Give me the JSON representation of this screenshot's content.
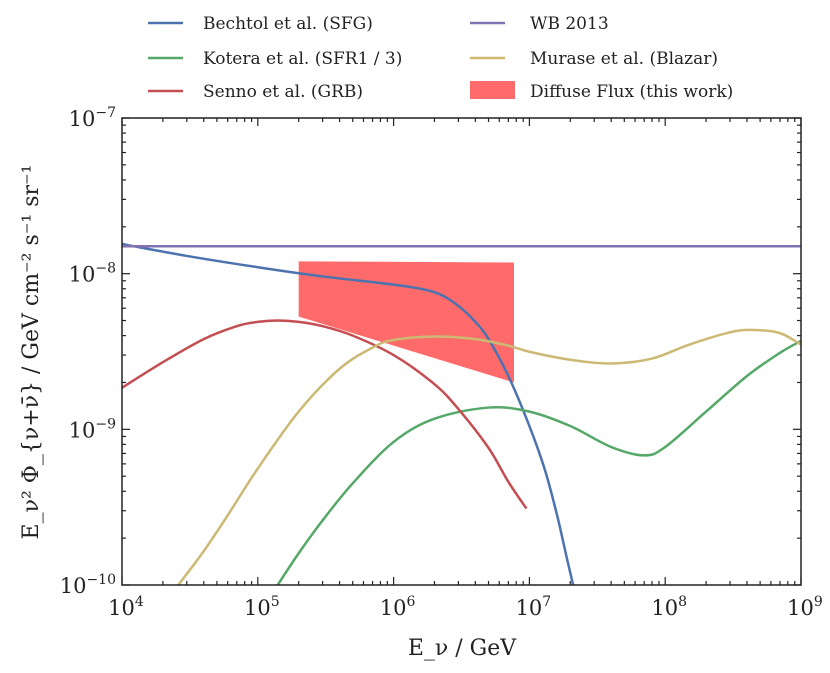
{
  "chart_data": {
    "type": "line",
    "xscale": "log",
    "yscale": "log",
    "xlim": [
      10000,
      1000000000
    ],
    "ylim": [
      1e-10,
      1e-07
    ],
    "xlabel": "E_ν / GeV",
    "ylabel": "E_ν² Φ_{ν+ν̄} / GeV cm⁻² s⁻¹ sr⁻¹",
    "x_ticks": [
      {
        "base": "10",
        "exp": "4",
        "value": 10000
      },
      {
        "base": "10",
        "exp": "5",
        "value": 100000
      },
      {
        "base": "10",
        "exp": "6",
        "value": 1000000
      },
      {
        "base": "10",
        "exp": "7",
        "value": 10000000
      },
      {
        "base": "10",
        "exp": "8",
        "value": 100000000
      },
      {
        "base": "10",
        "exp": "9",
        "value": 1000000000
      }
    ],
    "y_ticks": [
      {
        "base": "10",
        "exp": "−10",
        "value": 1e-10
      },
      {
        "base": "10",
        "exp": "−9",
        "value": 1e-09
      },
      {
        "base": "10",
        "exp": "−8",
        "value": 1e-08
      },
      {
        "base": "10",
        "exp": "−7",
        "value": 1e-07
      }
    ],
    "legend_position": "above-plot",
    "series": [
      {
        "name": "Bechtol et al. (SFG)",
        "color": "#4c72b0",
        "x": [
          10000,
          30000,
          100000,
          300000,
          1000000,
          2000000,
          3000000,
          4000000,
          5000000,
          7000000,
          10000000,
          13000000,
          16000000,
          19000000,
          21000000
        ],
        "y": [
          1.55e-08,
          1.3e-08,
          1.1e-08,
          9.6e-09,
          8.5e-09,
          7.6e-09,
          6.2e-09,
          4.9e-09,
          3.8e-09,
          2.2e-09,
          1.05e-09,
          5.5e-10,
          2.8e-10,
          1.45e-10,
          1e-10
        ]
      },
      {
        "name": "Kotera et al. (SFR1 / 3)",
        "color": "#55a868",
        "x": [
          140000,
          200000,
          300000,
          500000,
          1000000,
          2000000,
          5000000,
          10000000,
          20000000,
          40000000,
          70000000,
          100000000,
          200000000,
          400000000,
          700000000,
          1000000000
        ],
        "y": [
          1e-10,
          1.6e-10,
          2.6e-10,
          4.5e-10,
          8.3e-10,
          1.17e-09,
          1.38e-09,
          1.3e-09,
          1.05e-09,
          7.7e-10,
          6.8e-10,
          7.7e-10,
          1.3e-09,
          2.2e-09,
          3.1e-09,
          3.7e-09
        ]
      },
      {
        "name": "Senno et al. (GRB)",
        "color": "#c44e52",
        "x": [
          10000,
          20000,
          40000,
          70000,
          100000,
          140000,
          200000,
          300000,
          500000,
          1000000,
          2000000,
          3000000,
          5000000,
          7000000,
          9500000
        ],
        "y": [
          1.85e-09,
          2.7e-09,
          3.8e-09,
          4.6e-09,
          4.9e-09,
          5e-09,
          4.9e-09,
          4.6e-09,
          4e-09,
          3e-09,
          1.95e-09,
          1.35e-09,
          7.6e-10,
          4.6e-10,
          3.1e-10
        ]
      },
      {
        "name": "WB 2013",
        "color": "#8172b2",
        "x": [
          10000,
          1000000000
        ],
        "y": [
          1.5e-08,
          1.5e-08
        ]
      },
      {
        "name": "Murase et al. (Blazar)",
        "color": "#ccb974",
        "x": [
          26000,
          40000,
          60000,
          100000,
          200000,
          400000,
          700000,
          1000000,
          2000000,
          4000000,
          7000000,
          10000000,
          20000000,
          40000000,
          80000000,
          150000000,
          300000000,
          450000000,
          700000000,
          1000000000
        ],
        "y": [
          1e-10,
          1.65e-10,
          2.8e-10,
          5.6e-10,
          1.3e-09,
          2.45e-09,
          3.35e-09,
          3.75e-09,
          3.95e-09,
          3.8e-09,
          3.45e-09,
          3.15e-09,
          2.8e-09,
          2.65e-09,
          2.85e-09,
          3.5e-09,
          4.2e-09,
          4.35e-09,
          4.15e-09,
          3.5e-09
        ]
      }
    ],
    "band": {
      "name": "Diffuse Flux (this work)",
      "color": "#ff6b6b",
      "x": [
        200000,
        7700000
      ],
      "upper": [
        1.2e-08,
        1.18e-08
      ],
      "lower": [
        5.3e-09,
        2e-09
      ]
    }
  }
}
